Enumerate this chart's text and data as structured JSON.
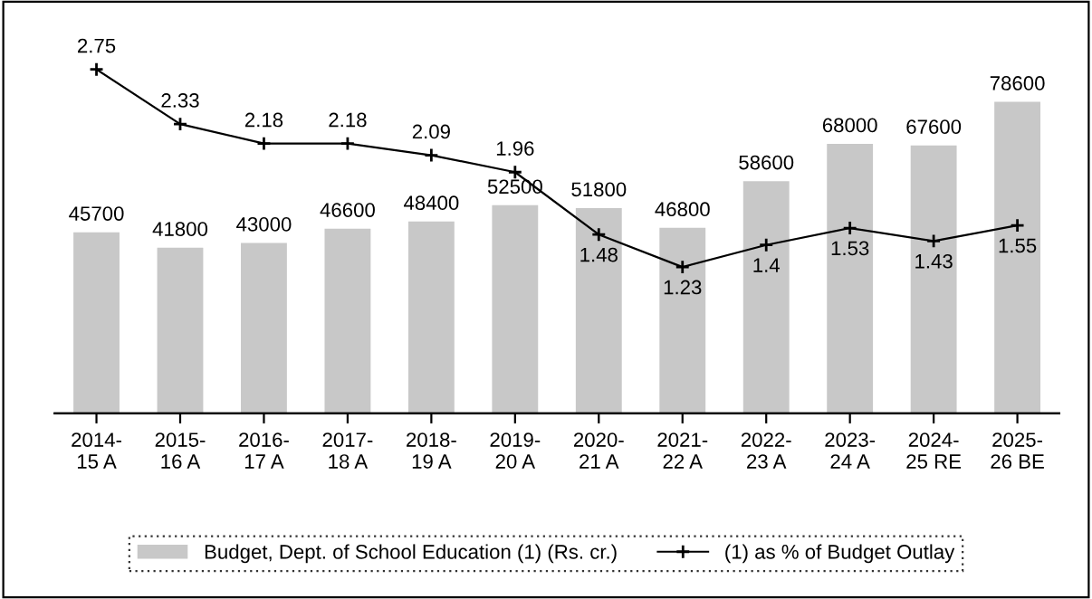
{
  "chart_data": {
    "type": "bar",
    "categories": [
      "2014-\n15 A",
      "2015-\n16 A",
      "2016-\n17 A",
      "2017-\n18 A",
      "2018-\n19 A",
      "2019-\n20 A",
      "2020-\n21 A",
      "2021-\n22 A",
      "2022-\n23 A",
      "2023-\n24 A",
      "2024-\n25 RE",
      "2025-\n26 BE"
    ],
    "series": [
      {
        "name": "Budget, Dept. of School Education (1) (Rs. cr.)",
        "color": "#c8c8c8",
        "values": [
          45700,
          41800,
          43000,
          46600,
          48400,
          52500,
          51800,
          46800,
          58600,
          68000,
          67600,
          78600
        ]
      },
      {
        "name": "(1) as % of Budget Outlay",
        "type": "line",
        "axis": "y2",
        "color": "#000000",
        "marker": "cross",
        "values": [
          2.75,
          2.33,
          2.18,
          2.18,
          2.09,
          1.96,
          1.48,
          1.23,
          1.4,
          1.53,
          1.43,
          1.55
        ]
      }
    ],
    "tick_labels": "x",
    "data_labels": true,
    "grid": false,
    "legend": "bottom"
  }
}
